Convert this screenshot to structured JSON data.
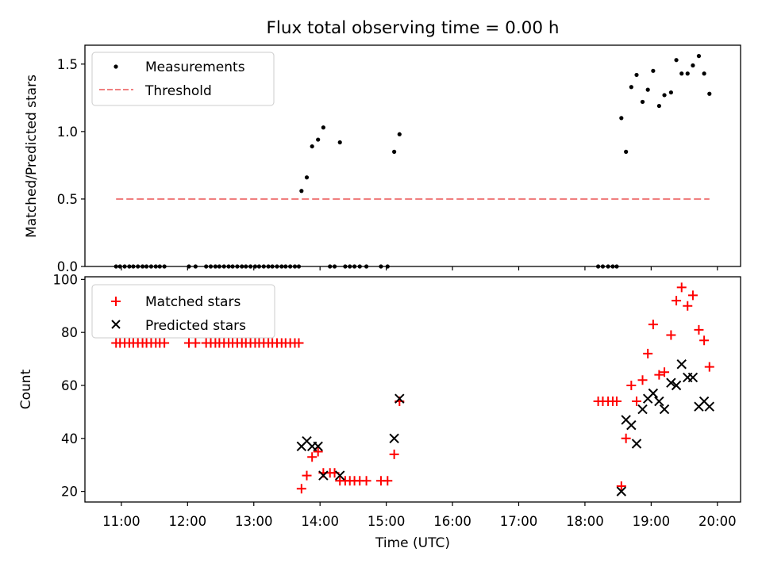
{
  "chart_data": [
    {
      "type": "scatter",
      "title": "Flux total observing time = 0.00 h",
      "xlabel": "",
      "ylabel": "Matched/Predicted stars",
      "x_unit": "hours UTC",
      "xlim": [
        10.45,
        20.35
      ],
      "ylim": [
        0,
        1.64
      ],
      "yticks": [
        "0.0",
        "0.5",
        "1.0",
        "1.5"
      ],
      "grid": false,
      "legend": "top-left",
      "series": [
        {
          "name": "Measurements",
          "marker": "dot",
          "color": "#000000",
          "points": [
            [
              10.92,
              0
            ],
            [
              10.98,
              0
            ],
            [
              11.05,
              0
            ],
            [
              11.12,
              0
            ],
            [
              11.18,
              0
            ],
            [
              11.25,
              0
            ],
            [
              11.32,
              0
            ],
            [
              11.38,
              0
            ],
            [
              11.45,
              0
            ],
            [
              11.52,
              0
            ],
            [
              11.58,
              0
            ],
            [
              11.65,
              0
            ],
            [
              12.02,
              0
            ],
            [
              12.12,
              0
            ],
            [
              12.28,
              0
            ],
            [
              12.35,
              0
            ],
            [
              12.42,
              0
            ],
            [
              12.48,
              0
            ],
            [
              12.55,
              0
            ],
            [
              12.62,
              0
            ],
            [
              12.68,
              0
            ],
            [
              12.75,
              0
            ],
            [
              12.82,
              0
            ],
            [
              12.88,
              0
            ],
            [
              12.95,
              0
            ],
            [
              13.02,
              0
            ],
            [
              13.08,
              0
            ],
            [
              13.15,
              0
            ],
            [
              13.22,
              0
            ],
            [
              13.28,
              0
            ],
            [
              13.35,
              0
            ],
            [
              13.42,
              0
            ],
            [
              13.48,
              0
            ],
            [
              13.55,
              0
            ],
            [
              13.62,
              0
            ],
            [
              13.68,
              0
            ],
            [
              13.72,
              0.56
            ],
            [
              13.8,
              0.66
            ],
            [
              13.88,
              0.89
            ],
            [
              13.97,
              0.94
            ],
            [
              14.05,
              1.03
            ],
            [
              14.15,
              0
            ],
            [
              14.22,
              0
            ],
            [
              14.3,
              0.92
            ],
            [
              14.38,
              0
            ],
            [
              14.45,
              0
            ],
            [
              14.52,
              0
            ],
            [
              14.6,
              0
            ],
            [
              14.7,
              0
            ],
            [
              14.92,
              0
            ],
            [
              15.02,
              0
            ],
            [
              15.12,
              0.85
            ],
            [
              15.2,
              0.98
            ],
            [
              18.2,
              0
            ],
            [
              18.27,
              0
            ],
            [
              18.35,
              0
            ],
            [
              18.42,
              0
            ],
            [
              18.48,
              0
            ],
            [
              18.55,
              1.1
            ],
            [
              18.62,
              0.85
            ],
            [
              18.7,
              1.33
            ],
            [
              18.78,
              1.42
            ],
            [
              18.87,
              1.22
            ],
            [
              18.95,
              1.31
            ],
            [
              19.03,
              1.45
            ],
            [
              19.12,
              1.19
            ],
            [
              19.2,
              1.27
            ],
            [
              19.3,
              1.29
            ],
            [
              19.38,
              1.53
            ],
            [
              19.46,
              1.43
            ],
            [
              19.55,
              1.43
            ],
            [
              19.63,
              1.49
            ],
            [
              19.72,
              1.56
            ],
            [
              19.8,
              1.43
            ],
            [
              19.88,
              1.28
            ]
          ]
        },
        {
          "name": "Threshold",
          "style": "dashed",
          "color": "#f08080",
          "points": [
            [
              10.92,
              0.5
            ],
            [
              19.88,
              0.5
            ]
          ]
        }
      ]
    },
    {
      "type": "scatter",
      "title": "",
      "xlabel": "Time (UTC)",
      "ylabel": "Count",
      "x_unit": "hours UTC",
      "xlim": [
        10.45,
        20.35
      ],
      "ylim": [
        16,
        101
      ],
      "xticks": [
        "11:00",
        "12:00",
        "13:00",
        "14:00",
        "15:00",
        "16:00",
        "17:00",
        "18:00",
        "19:00",
        "20:00"
      ],
      "yticks": [
        "20",
        "40",
        "60",
        "80",
        "100"
      ],
      "grid": false,
      "legend": "top-left",
      "series": [
        {
          "name": "Matched stars",
          "marker": "plus",
          "color": "#ff0000",
          "points": [
            [
              10.92,
              76
            ],
            [
              10.98,
              76
            ],
            [
              11.05,
              76
            ],
            [
              11.12,
              76
            ],
            [
              11.18,
              76
            ],
            [
              11.25,
              76
            ],
            [
              11.32,
              76
            ],
            [
              11.38,
              76
            ],
            [
              11.45,
              76
            ],
            [
              11.52,
              76
            ],
            [
              11.58,
              76
            ],
            [
              11.65,
              76
            ],
            [
              12.02,
              76
            ],
            [
              12.12,
              76
            ],
            [
              12.28,
              76
            ],
            [
              12.35,
              76
            ],
            [
              12.42,
              76
            ],
            [
              12.48,
              76
            ],
            [
              12.55,
              76
            ],
            [
              12.62,
              76
            ],
            [
              12.68,
              76
            ],
            [
              12.75,
              76
            ],
            [
              12.82,
              76
            ],
            [
              12.88,
              76
            ],
            [
              12.95,
              76
            ],
            [
              13.02,
              76
            ],
            [
              13.08,
              76
            ],
            [
              13.15,
              76
            ],
            [
              13.22,
              76
            ],
            [
              13.28,
              76
            ],
            [
              13.35,
              76
            ],
            [
              13.42,
              76
            ],
            [
              13.48,
              76
            ],
            [
              13.55,
              76
            ],
            [
              13.62,
              76
            ],
            [
              13.68,
              76
            ],
            [
              13.72,
              21
            ],
            [
              13.8,
              26
            ],
            [
              13.88,
              33
            ],
            [
              13.97,
              35
            ],
            [
              14.05,
              27
            ],
            [
              14.15,
              27
            ],
            [
              14.22,
              27
            ],
            [
              14.3,
              24
            ],
            [
              14.38,
              24
            ],
            [
              14.45,
              24
            ],
            [
              14.52,
              24
            ],
            [
              14.6,
              24
            ],
            [
              14.7,
              24
            ],
            [
              14.92,
              24
            ],
            [
              15.02,
              24
            ],
            [
              15.12,
              34
            ],
            [
              15.2,
              54
            ],
            [
              18.2,
              54
            ],
            [
              18.27,
              54
            ],
            [
              18.35,
              54
            ],
            [
              18.42,
              54
            ],
            [
              18.48,
              54
            ],
            [
              18.55,
              22
            ],
            [
              18.62,
              40
            ],
            [
              18.7,
              60
            ],
            [
              18.78,
              54
            ],
            [
              18.87,
              62
            ],
            [
              18.95,
              72
            ],
            [
              19.03,
              83
            ],
            [
              19.12,
              64
            ],
            [
              19.2,
              65
            ],
            [
              19.3,
              79
            ],
            [
              19.38,
              92
            ],
            [
              19.46,
              97
            ],
            [
              19.55,
              90
            ],
            [
              19.63,
              94
            ],
            [
              19.72,
              81
            ],
            [
              19.8,
              77
            ],
            [
              19.88,
              67
            ]
          ]
        },
        {
          "name": "Predicted stars",
          "marker": "x",
          "color": "#000000",
          "points": [
            [
              13.72,
              37
            ],
            [
              13.8,
              39
            ],
            [
              13.88,
              37
            ],
            [
              13.97,
              37
            ],
            [
              14.05,
              26
            ],
            [
              14.3,
              26
            ],
            [
              15.12,
              40
            ],
            [
              15.2,
              55
            ],
            [
              18.55,
              20
            ],
            [
              18.62,
              47
            ],
            [
              18.7,
              45
            ],
            [
              18.78,
              38
            ],
            [
              18.87,
              51
            ],
            [
              18.95,
              55
            ],
            [
              19.03,
              57
            ],
            [
              19.12,
              54
            ],
            [
              19.2,
              51
            ],
            [
              19.3,
              61
            ],
            [
              19.38,
              60
            ],
            [
              19.46,
              68
            ],
            [
              19.55,
              63
            ],
            [
              19.63,
              63
            ],
            [
              19.72,
              52
            ],
            [
              19.8,
              54
            ],
            [
              19.88,
              52
            ]
          ]
        }
      ]
    }
  ]
}
